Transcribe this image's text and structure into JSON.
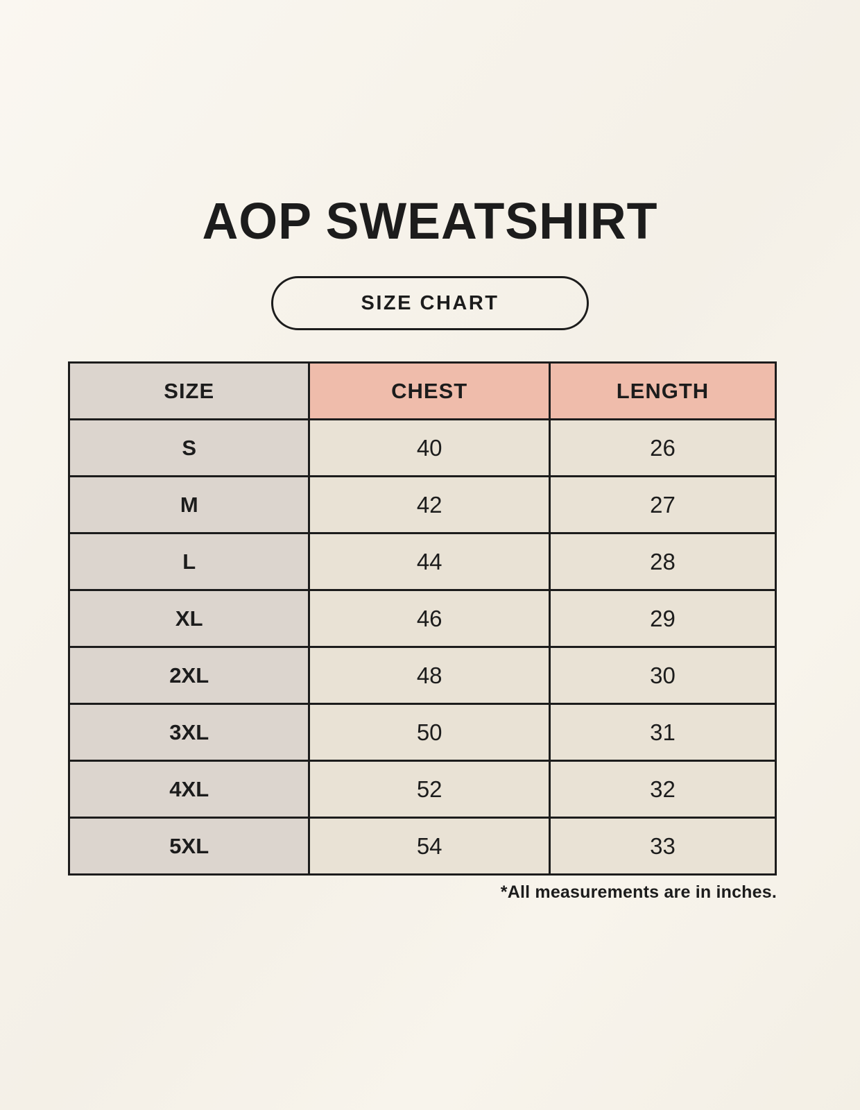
{
  "page": {
    "title": "AOP SWEATSHIRT",
    "badge_label": "SIZE CHART",
    "footnote": "*All measurements are in inches."
  },
  "table": {
    "headers": [
      "SIZE",
      "CHEST",
      "LENGTH"
    ],
    "rows": [
      {
        "size": "S",
        "chest": "40",
        "length": "26"
      },
      {
        "size": "M",
        "chest": "42",
        "length": "27"
      },
      {
        "size": "L",
        "chest": "44",
        "length": "28"
      },
      {
        "size": "XL",
        "chest": "46",
        "length": "29"
      },
      {
        "size": "2XL",
        "chest": "48",
        "length": "30"
      },
      {
        "size": "3XL",
        "chest": "50",
        "length": "31"
      },
      {
        "size": "4XL",
        "chest": "52",
        "length": "32"
      },
      {
        "size": "5XL",
        "chest": "54",
        "length": "33"
      }
    ]
  },
  "colors": {
    "background": "#f6f2ea",
    "size_column_bg": "#dcd5ce",
    "header_accent_bg": "#efbcab",
    "data_cell_bg": "#e9e2d5",
    "border": "#1c1c1c",
    "text": "#1c1c1c"
  },
  "chart_data": {
    "type": "table",
    "title": "AOP SWEATSHIRT",
    "subtitle": "SIZE CHART",
    "columns": [
      "SIZE",
      "CHEST",
      "LENGTH"
    ],
    "rows": [
      [
        "S",
        40,
        26
      ],
      [
        "M",
        42,
        27
      ],
      [
        "L",
        44,
        28
      ],
      [
        "XL",
        46,
        29
      ],
      [
        "2XL",
        48,
        30
      ],
      [
        "3XL",
        50,
        31
      ],
      [
        "4XL",
        52,
        32
      ],
      [
        "5XL",
        54,
        33
      ]
    ],
    "units": "inches",
    "note": "*All measurements are in inches."
  }
}
